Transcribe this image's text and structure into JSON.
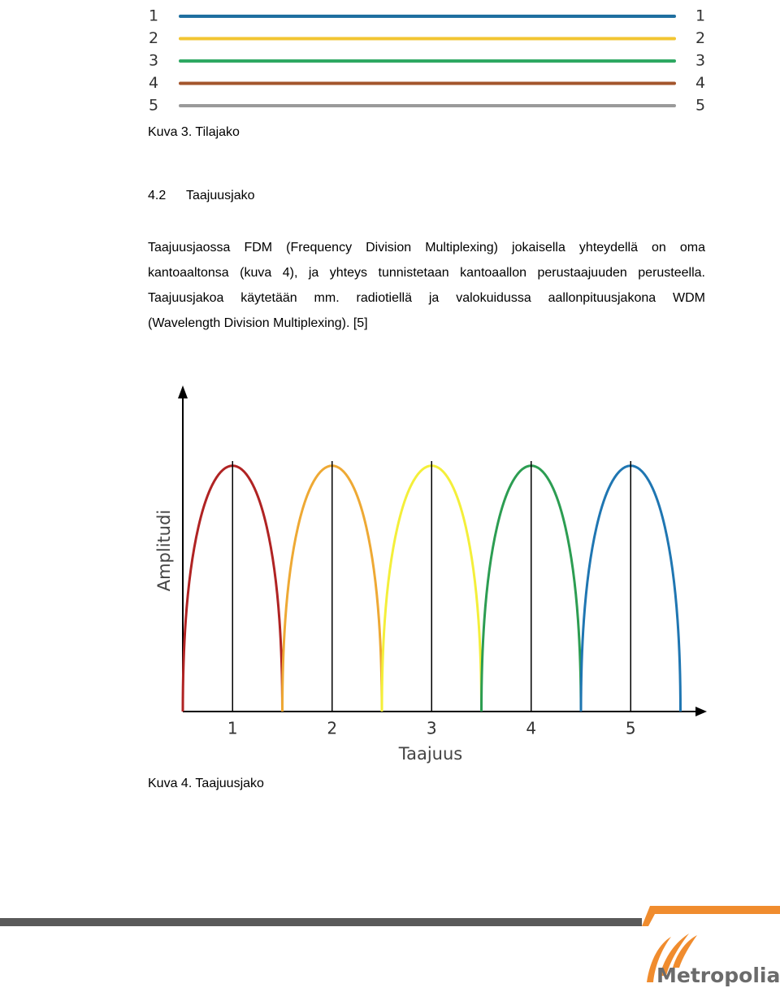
{
  "figure1": {
    "lines": [
      {
        "left": "1",
        "right": "1",
        "color": "#1f6fa0"
      },
      {
        "left": "2",
        "right": "2",
        "color": "#f2c531"
      },
      {
        "left": "3",
        "right": "3",
        "color": "#2ea862"
      },
      {
        "left": "4",
        "right": "4",
        "color": "#a3552c"
      },
      {
        "left": "5",
        "right": "5",
        "color": "#9a9a9a"
      }
    ],
    "caption": "Kuva 3. Tilajako"
  },
  "section": {
    "number": "4.2",
    "title": "Taajuusjako"
  },
  "paragraph": [
    "Taajuusjaossa FDM (Frequency Division Multiplexing) jokaisella yhteydellä on oma",
    "kantoaaltonsa (kuva 4), ja yhteys tunnistetaan kantoaallon perustaajuuden perusteella.",
    "Taajuusjakoa käytetään mm. radiotiellä ja valokuidussa aallonpituusjakona WDM",
    "(Wavelength Division Multiplexing). [5]"
  ],
  "figure2": {
    "y_label": "Amplitudi",
    "x_label": "Taajuus",
    "carriers": [
      {
        "label": "1",
        "color": "#b02323"
      },
      {
        "label": "2",
        "color": "#eea934"
      },
      {
        "label": "3",
        "color": "#f4ef3a"
      },
      {
        "label": "4",
        "color": "#2c9d52"
      },
      {
        "label": "5",
        "color": "#1f76b2"
      }
    ],
    "caption": "Kuva 4. Taajuusjako"
  },
  "footer": {
    "logo": "Metropolia"
  }
}
